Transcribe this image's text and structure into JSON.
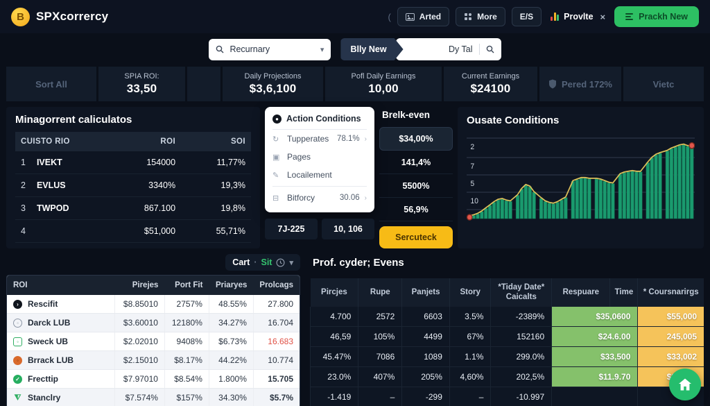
{
  "header": {
    "brand": "SPXcorrercy",
    "paren": "(",
    "btn_arted": "Arted",
    "btn_more": "More",
    "btn_es": "E/S",
    "provlte": "Provlte",
    "provlte_close": "×",
    "btn_new": "Prackh New"
  },
  "search": {
    "recurnary": "Recurnary",
    "tab": "Blly New",
    "dytal": "Dy Tal"
  },
  "stats": {
    "sort_all": "Sort All",
    "spia_label": "SPIA ROI:",
    "spia_value": "33,50",
    "daily_label": "Daily Projections",
    "daily_value": "$3,6,100",
    "pofl_label": "Pofl Daily Earnings",
    "pofl_value": "10,00",
    "current_label": "Current Earnings",
    "current_value": "$24100",
    "pered": "Pered 172%",
    "vietc": "Vietc"
  },
  "mina_table": {
    "title": "Minagorrent caliculatos",
    "columns": [
      "CUISTO RIO",
      "ROI",
      "SOI"
    ],
    "rows": [
      {
        "rank": "1",
        "name": "IVEKT",
        "roi": "154000",
        "soi": "11,77%"
      },
      {
        "rank": "2",
        "name": "EVLUS",
        "roi": "3340%",
        "soi": "19,3%"
      },
      {
        "rank": "3",
        "name": "TWPOD",
        "roi": "867.100",
        "soi": "19,8%"
      },
      {
        "rank": "4",
        "name": "",
        "roi": "$51,000",
        "soi": "55,71%"
      }
    ]
  },
  "popup": {
    "title": "Action Conditions",
    "items": [
      {
        "icon": "refresh-icon",
        "label": "Tupperates",
        "value": "78.1%"
      },
      {
        "icon": "pages-icon",
        "label": "Pages",
        "value": ""
      },
      {
        "icon": "location-icon",
        "label": "Locailement",
        "value": ""
      },
      {
        "icon": "bitforcy-icon",
        "label": "Bitforcy",
        "value": "30.06"
      }
    ],
    "footer": [
      "7J-225",
      "10, 106"
    ]
  },
  "breakeven": {
    "title": "Brelk-even",
    "boxed_value": "$34,00%",
    "values": [
      "141,4%",
      "5500%",
      "56,9%"
    ],
    "button": "Sercuteck"
  },
  "chart_data": {
    "type": "bar",
    "title": "Ousate Conditions",
    "y_ticks": [
      "2",
      "7",
      "5",
      "10"
    ],
    "groups": [
      [
        3,
        4,
        6,
        9,
        13,
        17,
        21,
        24,
        25,
        23,
        22
      ],
      [
        30,
        38,
        43,
        41,
        34
      ],
      [
        26,
        22,
        20,
        19,
        21,
        24,
        27
      ],
      [
        48,
        50,
        52,
        52,
        51
      ],
      [
        51,
        50,
        48,
        46,
        45
      ],
      [
        57,
        59,
        60,
        61,
        60,
        60
      ],
      [
        72,
        78,
        82,
        84
      ],
      [
        87,
        90,
        92,
        94,
        95,
        93,
        93
      ]
    ],
    "ylim": [
      0,
      100
    ],
    "grid": true,
    "line_overlay": true,
    "bar_color": "#1a9a6e",
    "bar_stroke": "#0f6e4e",
    "line_color": "#ddc05a",
    "dot_color": "#e2574c",
    "grid_color": "#46536a"
  },
  "roi_table": {
    "toolbar_cart": "Cart",
    "toolbar_sep": "·",
    "toolbar_sit": "Sit",
    "columns": [
      "ROI",
      "Pirejes",
      "Port Fit",
      "Priaryes",
      "Prolcags"
    ],
    "rows": [
      {
        "icon": "dark",
        "name": "Rescifit",
        "values": [
          "$8.85010",
          "2757%",
          "48.55%",
          "27.800"
        ],
        "flag": ""
      },
      {
        "icon": "ring",
        "name": "Darck LUB",
        "values": [
          "$3.60010",
          "12180%",
          "34.27%",
          "16.704"
        ],
        "flag": ""
      },
      {
        "icon": "green-ring",
        "name": "Sweck UB",
        "values": [
          "$2.02010",
          "9408%",
          "$6.73%",
          "16.683"
        ],
        "flag": "red"
      },
      {
        "icon": "orange",
        "name": "Brrack LUB",
        "values": [
          "$2.15010",
          "$8.17%",
          "44.22%",
          "10.774"
        ],
        "flag": ""
      },
      {
        "icon": "green",
        "name": "Frecttip",
        "values": [
          "$7.97010",
          "$8.54%",
          "1.800%",
          "15.705"
        ],
        "flag": "bold"
      },
      {
        "icon": "funnel",
        "name": "Stanclry",
        "values": [
          "$7.574%",
          "$157%",
          "34.30%",
          "$5.7%"
        ],
        "flag": "bold"
      }
    ]
  },
  "prof_table": {
    "title": "Prof. cyder; Evens",
    "columns": [
      "Pircjes",
      "Rupe",
      "Panjets",
      "Story",
      "*Tiday Date* Caicalts",
      "Respuare",
      "Time",
      "* Coursnarirgs"
    ],
    "rows": [
      {
        "cells": [
          "4.700",
          "2572",
          "6603",
          "3.5%",
          "-2389%"
        ],
        "green": "$35,0600",
        "orange": "$55,000"
      },
      {
        "cells": [
          "46,59",
          "105%",
          "4499",
          "67%",
          "152160"
        ],
        "green": "$24.6.00",
        "orange": "245,005"
      },
      {
        "cells": [
          "45.47%",
          "7086",
          "1089",
          "1.1%",
          "299.0%"
        ],
        "green": "$33,500",
        "orange": "$33,002"
      },
      {
        "cells": [
          "23.0%",
          "407%",
          "205%",
          "4,60%",
          "202,5%"
        ],
        "green": "$11.9.70",
        "orange": "$25,000"
      },
      {
        "cells": [
          "-1.419",
          "–",
          "-299",
          "–",
          "-10.997"
        ],
        "green": "",
        "orange": ""
      }
    ]
  },
  "colors": {
    "accent_green": "#2dc063",
    "accent_yellow": "#f7bb16",
    "cell_green": "#85c16b",
    "cell_orange": "#f5c35a",
    "negative_red": "#e05246"
  }
}
